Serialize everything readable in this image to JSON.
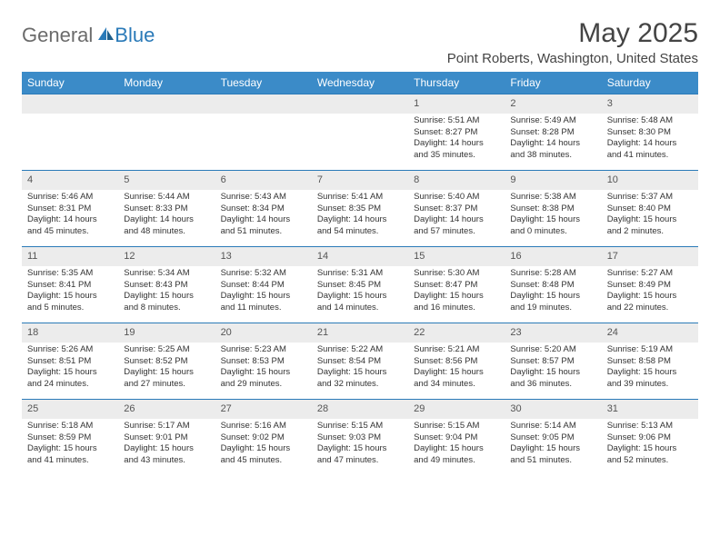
{
  "logo": {
    "text1": "General",
    "text2": "Blue"
  },
  "title": "May 2025",
  "location": "Point Roberts, Washington, United States",
  "colors": {
    "header_bg": "#3b8bc8",
    "accent": "#2a7ab8",
    "daynum_bg": "#ececec"
  },
  "columns": [
    "Sunday",
    "Monday",
    "Tuesday",
    "Wednesday",
    "Thursday",
    "Friday",
    "Saturday"
  ],
  "weeks": [
    [
      null,
      null,
      null,
      null,
      {
        "n": "1",
        "sr": "5:51 AM",
        "ss": "8:27 PM",
        "dl": "14 hours and 35 minutes."
      },
      {
        "n": "2",
        "sr": "5:49 AM",
        "ss": "8:28 PM",
        "dl": "14 hours and 38 minutes."
      },
      {
        "n": "3",
        "sr": "5:48 AM",
        "ss": "8:30 PM",
        "dl": "14 hours and 41 minutes."
      }
    ],
    [
      {
        "n": "4",
        "sr": "5:46 AM",
        "ss": "8:31 PM",
        "dl": "14 hours and 45 minutes."
      },
      {
        "n": "5",
        "sr": "5:44 AM",
        "ss": "8:33 PM",
        "dl": "14 hours and 48 minutes."
      },
      {
        "n": "6",
        "sr": "5:43 AM",
        "ss": "8:34 PM",
        "dl": "14 hours and 51 minutes."
      },
      {
        "n": "7",
        "sr": "5:41 AM",
        "ss": "8:35 PM",
        "dl": "14 hours and 54 minutes."
      },
      {
        "n": "8",
        "sr": "5:40 AM",
        "ss": "8:37 PM",
        "dl": "14 hours and 57 minutes."
      },
      {
        "n": "9",
        "sr": "5:38 AM",
        "ss": "8:38 PM",
        "dl": "15 hours and 0 minutes."
      },
      {
        "n": "10",
        "sr": "5:37 AM",
        "ss": "8:40 PM",
        "dl": "15 hours and 2 minutes."
      }
    ],
    [
      {
        "n": "11",
        "sr": "5:35 AM",
        "ss": "8:41 PM",
        "dl": "15 hours and 5 minutes."
      },
      {
        "n": "12",
        "sr": "5:34 AM",
        "ss": "8:43 PM",
        "dl": "15 hours and 8 minutes."
      },
      {
        "n": "13",
        "sr": "5:32 AM",
        "ss": "8:44 PM",
        "dl": "15 hours and 11 minutes."
      },
      {
        "n": "14",
        "sr": "5:31 AM",
        "ss": "8:45 PM",
        "dl": "15 hours and 14 minutes."
      },
      {
        "n": "15",
        "sr": "5:30 AM",
        "ss": "8:47 PM",
        "dl": "15 hours and 16 minutes."
      },
      {
        "n": "16",
        "sr": "5:28 AM",
        "ss": "8:48 PM",
        "dl": "15 hours and 19 minutes."
      },
      {
        "n": "17",
        "sr": "5:27 AM",
        "ss": "8:49 PM",
        "dl": "15 hours and 22 minutes."
      }
    ],
    [
      {
        "n": "18",
        "sr": "5:26 AM",
        "ss": "8:51 PM",
        "dl": "15 hours and 24 minutes."
      },
      {
        "n": "19",
        "sr": "5:25 AM",
        "ss": "8:52 PM",
        "dl": "15 hours and 27 minutes."
      },
      {
        "n": "20",
        "sr": "5:23 AM",
        "ss": "8:53 PM",
        "dl": "15 hours and 29 minutes."
      },
      {
        "n": "21",
        "sr": "5:22 AM",
        "ss": "8:54 PM",
        "dl": "15 hours and 32 minutes."
      },
      {
        "n": "22",
        "sr": "5:21 AM",
        "ss": "8:56 PM",
        "dl": "15 hours and 34 minutes."
      },
      {
        "n": "23",
        "sr": "5:20 AM",
        "ss": "8:57 PM",
        "dl": "15 hours and 36 minutes."
      },
      {
        "n": "24",
        "sr": "5:19 AM",
        "ss": "8:58 PM",
        "dl": "15 hours and 39 minutes."
      }
    ],
    [
      {
        "n": "25",
        "sr": "5:18 AM",
        "ss": "8:59 PM",
        "dl": "15 hours and 41 minutes."
      },
      {
        "n": "26",
        "sr": "5:17 AM",
        "ss": "9:01 PM",
        "dl": "15 hours and 43 minutes."
      },
      {
        "n": "27",
        "sr": "5:16 AM",
        "ss": "9:02 PM",
        "dl": "15 hours and 45 minutes."
      },
      {
        "n": "28",
        "sr": "5:15 AM",
        "ss": "9:03 PM",
        "dl": "15 hours and 47 minutes."
      },
      {
        "n": "29",
        "sr": "5:15 AM",
        "ss": "9:04 PM",
        "dl": "15 hours and 49 minutes."
      },
      {
        "n": "30",
        "sr": "5:14 AM",
        "ss": "9:05 PM",
        "dl": "15 hours and 51 minutes."
      },
      {
        "n": "31",
        "sr": "5:13 AM",
        "ss": "9:06 PM",
        "dl": "15 hours and 52 minutes."
      }
    ]
  ],
  "labels": {
    "sunrise": "Sunrise: ",
    "sunset": "Sunset: ",
    "daylight": "Daylight: "
  }
}
